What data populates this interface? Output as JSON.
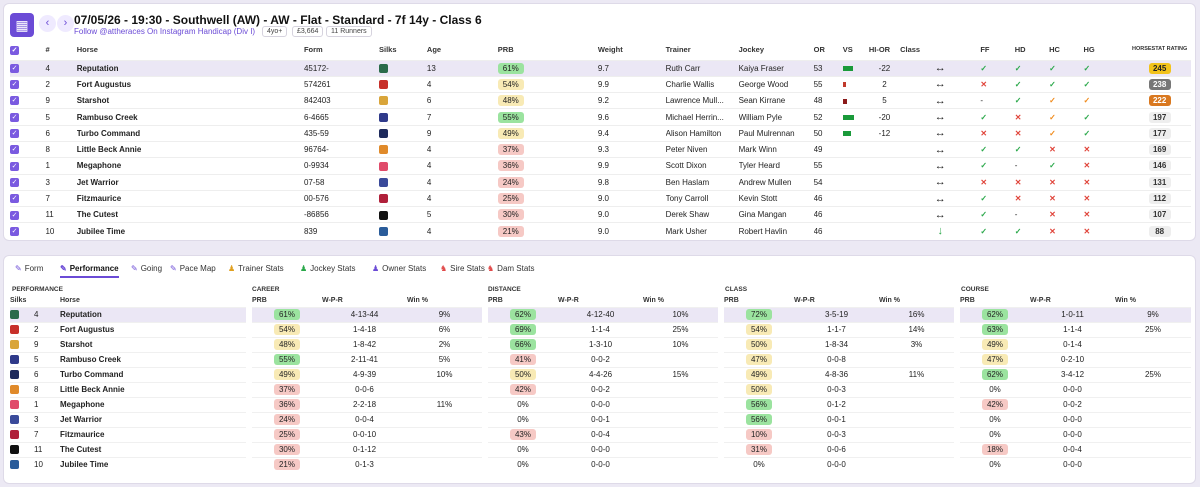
{
  "race": {
    "title": "07/05/26 - 19:30 - Southwell (AW) - AW - Flat - Standard - 7f 14y - Class 6",
    "subtitle": "Follow @attheraces On Instagram Handicap (Div I)",
    "age_pill": "4yo+",
    "prize_pill": "£3,664",
    "runners_pill": "11 Runners"
  },
  "runners_columns": {
    "num": "#",
    "horse": "Horse",
    "form": "Form",
    "silks": "Silks",
    "age": "Age",
    "prb": "PRB",
    "weight": "Weight",
    "trainer": "Trainer",
    "jockey": "Jockey",
    "or": "OR",
    "vs": "VS",
    "hior": "HI-OR",
    "class": "Class",
    "ff": "FF",
    "hd": "HD",
    "hc": "HC",
    "hg": "HG",
    "hs": "HORSESTAT RATING"
  },
  "runners": [
    {
      "num": "4",
      "horse": "Reputation",
      "form": "45172-",
      "age": "13",
      "prb": "61%",
      "weight": "9.7",
      "trainer": "Ruth Carr",
      "jockey": "Kaiya Fraser",
      "or": "53",
      "hior": "-22",
      "cls": "↔",
      "ff": "✓",
      "hd": "✓",
      "hc": "✓",
      "hg": "✓",
      "hs": "245",
      "vs": 0.7,
      "vsc": "#1a9a3a",
      "prbc": "#9be39f",
      "hsc": "#f2c31b",
      "hst": "#222",
      "silk": "#2a6b4a",
      "ffc": "tk",
      "hdc": "tk",
      "hcc": "tk",
      "hgc": "tk"
    },
    {
      "num": "2",
      "horse": "Fort Augustus",
      "form": "574261",
      "age": "4",
      "prb": "54%",
      "weight": "9.9",
      "trainer": "Charlie Wallis",
      "jockey": "George Wood",
      "or": "55",
      "hior": "2",
      "cls": "↔",
      "ff": "✕",
      "hd": "✓",
      "hc": "✓",
      "hg": "✓",
      "hs": "238",
      "vs": 0.2,
      "vsc": "#c0392b",
      "prbc": "#f8eab5",
      "hsc": "#777",
      "hst": "#fff",
      "silk": "#c7302a",
      "ffc": "cr",
      "hdc": "tk",
      "hcc": "tk",
      "hgc": "tk"
    },
    {
      "num": "9",
      "horse": "Starshot",
      "form": "842403",
      "age": "6",
      "prb": "48%",
      "weight": "9.2",
      "trainer": "Lawrence Mull...",
      "jockey": "Sean Kirrane",
      "or": "48",
      "hior": "5",
      "cls": "↔",
      "ff": "-",
      "hd": "✓",
      "hc": "✓",
      "hg": "✓",
      "hs": "222",
      "vs": 0.3,
      "vsc": "#8b1a1a",
      "prbc": "#f8eab5",
      "hsc": "#d9781f",
      "hst": "#fff",
      "silk": "#d9a53a",
      "ffc": "",
      "hdc": "tk",
      "hcc": "pt",
      "hgc": "pt"
    },
    {
      "num": "5",
      "horse": "Rambuso Creek",
      "form": "6-4665",
      "age": "7",
      "prb": "55%",
      "weight": "9.6",
      "trainer": "Michael Herrin...",
      "jockey": "William Pyle",
      "or": "52",
      "hior": "-20",
      "cls": "↔",
      "ff": "✓",
      "hd": "✕",
      "hc": "✓",
      "hg": "✓",
      "hs": "197",
      "vs": 0.8,
      "vsc": "#1a9a3a",
      "prbc": "#9be39f",
      "hsc": "#eee",
      "hst": "#333",
      "silk": "#2f3a8a",
      "ffc": "tk",
      "hdc": "cr",
      "hcc": "pt",
      "hgc": "tk"
    },
    {
      "num": "6",
      "horse": "Turbo Command",
      "form": "435-59",
      "age": "9",
      "prb": "49%",
      "weight": "9.4",
      "trainer": "Alison Hamilton",
      "jockey": "Paul Mulrennan",
      "or": "50",
      "hior": "-12",
      "cls": "↔",
      "ff": "✕",
      "hd": "✕",
      "hc": "✓",
      "hg": "✓",
      "hs": "177",
      "vs": 0.6,
      "vsc": "#1a9a3a",
      "prbc": "#f8eab5",
      "hsc": "#eee",
      "hst": "#333",
      "silk": "#1e2a5c",
      "ffc": "cr",
      "hdc": "cr",
      "hcc": "pt",
      "hgc": "tk"
    },
    {
      "num": "8",
      "horse": "Little Beck Annie",
      "form": "96764-",
      "age": "4",
      "prb": "37%",
      "weight": "9.3",
      "trainer": "Peter Niven",
      "jockey": "Mark Winn",
      "or": "49",
      "hior": "",
      "cls": "↔",
      "ff": "✓",
      "hd": "✓",
      "hc": "✕",
      "hg": "✕",
      "hs": "169",
      "vs": 0,
      "vsc": "#fff",
      "prbc": "#f6c9c5",
      "hsc": "#eee",
      "hst": "#333",
      "silk": "#e08a2a",
      "ffc": "tk",
      "hdc": "tk",
      "hcc": "cr",
      "hgc": "cr"
    },
    {
      "num": "1",
      "horse": "Megaphone",
      "form": "0-9934",
      "age": "4",
      "prb": "36%",
      "weight": "9.9",
      "trainer": "Scott Dixon",
      "jockey": "Tyler Heard",
      "or": "55",
      "hior": "",
      "cls": "↔",
      "ff": "✓",
      "hd": "-",
      "hc": "✓",
      "hg": "✕",
      "hs": "146",
      "vs": 0,
      "vsc": "#fff",
      "prbc": "#f6c9c5",
      "hsc": "#eee",
      "hst": "#333",
      "silk": "#e04a6a",
      "ffc": "tk",
      "hdc": "",
      "hcc": "tk",
      "hgc": "cr"
    },
    {
      "num": "3",
      "horse": "Jet Warrior",
      "form": "07-58",
      "age": "4",
      "prb": "24%",
      "weight": "9.8",
      "trainer": "Ben Haslam",
      "jockey": "Andrew Mullen",
      "or": "54",
      "hior": "",
      "cls": "↔",
      "ff": "✕",
      "hd": "✕",
      "hc": "✕",
      "hg": "✕",
      "hs": "131",
      "vs": 0,
      "vsc": "#fff",
      "prbc": "#f6c9c5",
      "hsc": "#eee",
      "hst": "#333",
      "silk": "#3a4a9a",
      "ffc": "cr",
      "hdc": "cr",
      "hcc": "cr",
      "hgc": "cr"
    },
    {
      "num": "7",
      "horse": "Fitzmaurice",
      "form": "00-576",
      "age": "4",
      "prb": "25%",
      "weight": "9.0",
      "trainer": "Tony Carroll",
      "jockey": "Kevin Stott",
      "or": "46",
      "hior": "",
      "cls": "↔",
      "ff": "✓",
      "hd": "✕",
      "hc": "✕",
      "hg": "✕",
      "hs": "112",
      "vs": 0,
      "vsc": "#fff",
      "prbc": "#f6c9c5",
      "hsc": "#eee",
      "hst": "#333",
      "silk": "#b0203a",
      "ffc": "tk",
      "hdc": "cr",
      "hcc": "cr",
      "hgc": "cr"
    },
    {
      "num": "11",
      "horse": "The Cutest",
      "form": "-86856",
      "age": "5",
      "prb": "30%",
      "weight": "9.0",
      "trainer": "Derek Shaw",
      "jockey": "Gina Mangan",
      "or": "46",
      "hior": "",
      "cls": "↔",
      "ff": "✓",
      "hd": "-",
      "hc": "✕",
      "hg": "✕",
      "hs": "107",
      "vs": 0,
      "vsc": "#fff",
      "prbc": "#f6c9c5",
      "hsc": "#eee",
      "hst": "#333",
      "silk": "#111",
      "ffc": "tk",
      "hdc": "",
      "hcc": "cr",
      "hgc": "cr"
    },
    {
      "num": "10",
      "horse": "Jubilee Time",
      "form": "839",
      "age": "4",
      "prb": "21%",
      "weight": "9.0",
      "trainer": "Mark Usher",
      "jockey": "Robert Havlin",
      "or": "46",
      "hior": "",
      "cls": "↓",
      "ff": "✓",
      "hd": "✓",
      "hc": "✕",
      "hg": "✕",
      "hs": "88",
      "vs": 0,
      "vsc": "#fff",
      "prbc": "#f6c9c5",
      "hsc": "#eee",
      "hst": "#333",
      "silk": "#2a5c9a",
      "ffc": "tk",
      "hdc": "tk",
      "hcc": "cr",
      "hgc": "cr"
    }
  ],
  "tabs": [
    {
      "label": "Form",
      "icon": "✎",
      "name": "tab-form"
    },
    {
      "label": "Performance",
      "icon": "✎",
      "name": "tab-performance"
    },
    {
      "label": "Going",
      "icon": "✎",
      "name": "tab-going"
    },
    {
      "label": "Pace Map",
      "icon": "✎",
      "name": "tab-pace-map"
    },
    {
      "label": "Trainer Stats",
      "icon": "♟",
      "name": "tab-trainer-stats"
    },
    {
      "label": "Jockey Stats",
      "icon": "♟",
      "name": "tab-jockey-stats"
    },
    {
      "label": "Owner Stats",
      "icon": "♟",
      "name": "tab-owner-stats"
    },
    {
      "label": "Sire Stats",
      "icon": "♞",
      "name": "tab-sire-stats"
    },
    {
      "label": "Dam Stats",
      "icon": "♞",
      "name": "tab-dam-stats"
    }
  ],
  "perf": {
    "section": "PERFORMANCE",
    "career": "CAREER",
    "distance": "DISTANCE",
    "class": "CLASS",
    "course": "COURSE",
    "h_silks": "Silks",
    "h_horse": "Horse",
    "h_prb": "PRB",
    "h_wpr": "W-P-R",
    "h_win": "Win %",
    "rows": [
      {
        "num": "4",
        "horse": "Reputation",
        "c": [
          "61%",
          "4-13-44",
          "9%"
        ],
        "d": [
          "62%",
          "4-12-40",
          "10%"
        ],
        "k": [
          "72%",
          "3-5-19",
          "16%"
        ],
        "o": [
          "62%",
          "1-0-11",
          "9%"
        ]
      },
      {
        "num": "2",
        "horse": "Fort Augustus",
        "c": [
          "54%",
          "1-4-18",
          "6%"
        ],
        "d": [
          "69%",
          "1-1-4",
          "25%"
        ],
        "k": [
          "54%",
          "1-1-7",
          "14%"
        ],
        "o": [
          "63%",
          "1-1-4",
          "25%"
        ]
      },
      {
        "num": "9",
        "horse": "Starshot",
        "c": [
          "48%",
          "1-8-42",
          "2%"
        ],
        "d": [
          "66%",
          "1-3-10",
          "10%"
        ],
        "k": [
          "50%",
          "1-8-34",
          "3%"
        ],
        "o": [
          "49%",
          "0-1-4",
          ""
        ]
      },
      {
        "num": "5",
        "horse": "Rambuso Creek",
        "c": [
          "55%",
          "2-11-41",
          "5%"
        ],
        "d": [
          "41%",
          "0-0-2",
          ""
        ],
        "k": [
          "47%",
          "0-0-8",
          ""
        ],
        "o": [
          "47%",
          "0-2-10",
          ""
        ]
      },
      {
        "num": "6",
        "horse": "Turbo Command",
        "c": [
          "49%",
          "4-9-39",
          "10%"
        ],
        "d": [
          "50%",
          "4-4-26",
          "15%"
        ],
        "k": [
          "49%",
          "4-8-36",
          "11%"
        ],
        "o": [
          "62%",
          "3-4-12",
          "25%"
        ]
      },
      {
        "num": "8",
        "horse": "Little Beck Annie",
        "c": [
          "37%",
          "0-0-6",
          ""
        ],
        "d": [
          "42%",
          "0-0-2",
          ""
        ],
        "k": [
          "50%",
          "0-0-3",
          ""
        ],
        "o": [
          "0%",
          "0-0-0",
          ""
        ]
      },
      {
        "num": "1",
        "horse": "Megaphone",
        "c": [
          "36%",
          "2-2-18",
          "11%"
        ],
        "d": [
          "0%",
          "0-0-0",
          ""
        ],
        "k": [
          "56%",
          "0-1-2",
          ""
        ],
        "o": [
          "42%",
          "0-0-2",
          ""
        ]
      },
      {
        "num": "3",
        "horse": "Jet Warrior",
        "c": [
          "24%",
          "0-0-4",
          ""
        ],
        "d": [
          "0%",
          "0-0-1",
          ""
        ],
        "k": [
          "56%",
          "0-0-1",
          ""
        ],
        "o": [
          "0%",
          "0-0-0",
          ""
        ]
      },
      {
        "num": "7",
        "horse": "Fitzmaurice",
        "c": [
          "25%",
          "0-0-10",
          ""
        ],
        "d": [
          "43%",
          "0-0-4",
          ""
        ],
        "k": [
          "10%",
          "0-0-3",
          ""
        ],
        "o": [
          "0%",
          "0-0-0",
          ""
        ]
      },
      {
        "num": "11",
        "horse": "The Cutest",
        "c": [
          "30%",
          "0-1-12",
          ""
        ],
        "d": [
          "0%",
          "0-0-0",
          ""
        ],
        "k": [
          "31%",
          "0-0-6",
          ""
        ],
        "o": [
          "18%",
          "0-0-4",
          ""
        ]
      },
      {
        "num": "10",
        "horse": "Jubilee Time",
        "c": [
          "21%",
          "0-1-3",
          ""
        ],
        "d": [
          "0%",
          "0-0-0",
          ""
        ],
        "k": [
          "0%",
          "0-0-0",
          ""
        ],
        "o": [
          "0%",
          "0-0-0",
          ""
        ]
      }
    ]
  }
}
